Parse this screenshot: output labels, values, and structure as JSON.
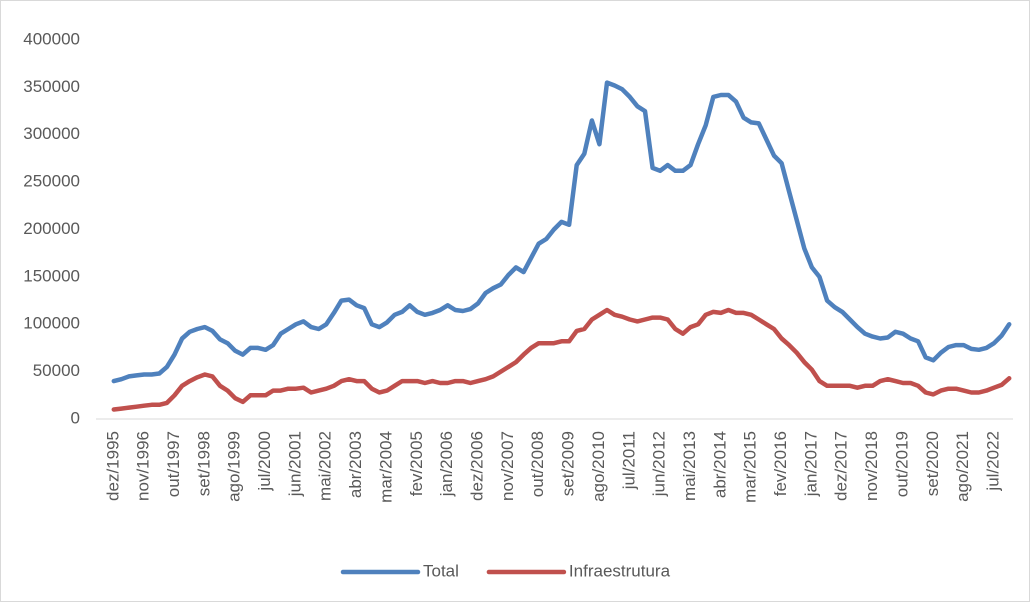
{
  "chart_data": {
    "type": "line",
    "categories": [
      "dez/1995",
      null,
      null,
      null,
      "nov/1996",
      null,
      null,
      null,
      "out/1997",
      null,
      null,
      null,
      "set/1998",
      null,
      null,
      null,
      "ago/1999",
      null,
      null,
      null,
      "jul/2000",
      null,
      null,
      null,
      "jun/2001",
      null,
      null,
      null,
      "mai/2002",
      null,
      null,
      null,
      "abr/2003",
      null,
      null,
      null,
      "mar/2004",
      null,
      null,
      null,
      "fev/2005",
      null,
      null,
      null,
      "jan/2006",
      null,
      null,
      null,
      "dez/2006",
      null,
      null,
      null,
      "nov/2007",
      null,
      null,
      null,
      "out/2008",
      null,
      null,
      null,
      "set/2009",
      null,
      null,
      null,
      "ago/2010",
      null,
      null,
      null,
      "jul/2011",
      null,
      null,
      null,
      "jun/2012",
      null,
      null,
      null,
      "mai/2013",
      null,
      null,
      null,
      "abr/2014",
      null,
      null,
      null,
      "mar/2015",
      null,
      null,
      null,
      "fev/2016",
      null,
      null,
      null,
      "jan/2017",
      null,
      null,
      null,
      "dez/2017",
      null,
      null,
      null,
      "nov/2018",
      null,
      null,
      null,
      "out/2019",
      null,
      null,
      null,
      "set/2020",
      null,
      null,
      null,
      "ago/2021",
      null,
      null,
      null,
      "jul/2022",
      null,
      null
    ],
    "series": [
      {
        "name": "Total",
        "color": "#4f81bd",
        "values": [
          40000,
          42000,
          45000,
          46000,
          47000,
          47000,
          48000,
          55000,
          68000,
          85000,
          92000,
          95000,
          97000,
          93000,
          84000,
          80000,
          72000,
          68000,
          75000,
          75000,
          73000,
          78000,
          90000,
          95000,
          100000,
          103000,
          97000,
          95000,
          100000,
          112000,
          125000,
          126000,
          120000,
          117000,
          100000,
          97000,
          102000,
          110000,
          113000,
          120000,
          113000,
          110000,
          112000,
          115000,
          120000,
          115000,
          114000,
          116000,
          122000,
          133000,
          138000,
          142000,
          152000,
          160000,
          155000,
          170000,
          185000,
          190000,
          200000,
          208000,
          205000,
          268000,
          280000,
          315000,
          290000,
          355000,
          352000,
          348000,
          340000,
          330000,
          325000,
          265000,
          262000,
          268000,
          262000,
          262000,
          268000,
          290000,
          310000,
          340000,
          342000,
          342000,
          335000,
          318000,
          313000,
          312000,
          295000,
          278000,
          270000,
          240000,
          210000,
          180000,
          160000,
          150000,
          125000,
          118000,
          113000,
          105000,
          97000,
          90000,
          87000,
          85000,
          86000,
          92000,
          90000,
          85000,
          82000,
          65000,
          62000,
          70000,
          76000,
          78000,
          78000,
          74000,
          73000,
          75000,
          80000,
          88000,
          100000
        ]
      },
      {
        "name": "Infraestrutura",
        "color": "#c0504d",
        "values": [
          10000,
          11000,
          12000,
          13000,
          14000,
          15000,
          15000,
          17000,
          25000,
          35000,
          40000,
          44000,
          47000,
          45000,
          35000,
          30000,
          22000,
          18000,
          25000,
          25000,
          25000,
          30000,
          30000,
          32000,
          32000,
          33000,
          28000,
          30000,
          32000,
          35000,
          40000,
          42000,
          40000,
          40000,
          32000,
          28000,
          30000,
          35000,
          40000,
          40000,
          40000,
          38000,
          40000,
          38000,
          38000,
          40000,
          40000,
          38000,
          40000,
          42000,
          45000,
          50000,
          55000,
          60000,
          68000,
          75000,
          80000,
          80000,
          80000,
          82000,
          82000,
          93000,
          95000,
          105000,
          110000,
          115000,
          110000,
          108000,
          105000,
          103000,
          105000,
          107000,
          107000,
          105000,
          95000,
          90000,
          97000,
          100000,
          110000,
          113000,
          112000,
          115000,
          112000,
          112000,
          110000,
          105000,
          100000,
          95000,
          85000,
          78000,
          70000,
          60000,
          52000,
          40000,
          35000,
          35000,
          35000,
          35000,
          33000,
          35000,
          35000,
          40000,
          42000,
          40000,
          38000,
          38000,
          35000,
          28000,
          26000,
          30000,
          32000,
          32000,
          30000,
          28000,
          28000,
          30000,
          33000,
          36000,
          43000
        ]
      }
    ],
    "ylim": [
      0,
      400000
    ],
    "yticks": [
      0,
      50000,
      100000,
      150000,
      200000,
      250000,
      300000,
      350000,
      400000
    ],
    "grid": false,
    "legend": "bottom"
  }
}
